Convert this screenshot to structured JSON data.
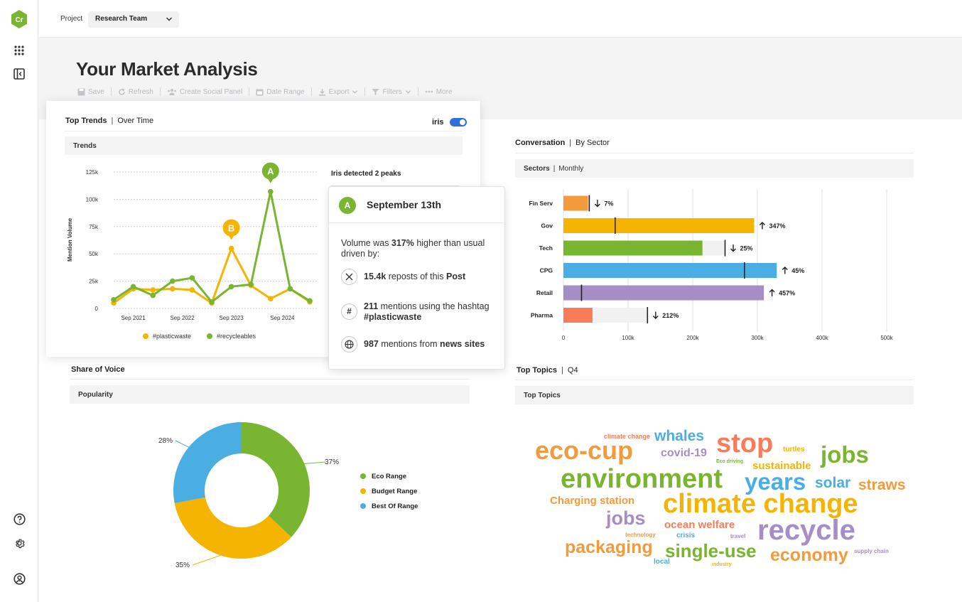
{
  "brand": {
    "logo_text": "Cr",
    "color": "#7ab532"
  },
  "topbar": {
    "project_label": "Project",
    "project_value": "Research Team"
  },
  "page": {
    "title": "Your Market Analysis"
  },
  "toolbar": {
    "save": "Save",
    "refresh": "Refresh",
    "create_panel": "Create Social Panel",
    "date_range": "Date Range",
    "export": "Export",
    "filters": "Filters",
    "more": "More"
  },
  "trends": {
    "title": "Top Trends",
    "subtitle": "Over Time",
    "iris_label": "iris",
    "iris_enabled": true,
    "subbar": "Trends",
    "peaks_note": "Iris detected 2 peaks",
    "peak_a": "A",
    "peak_b": "B"
  },
  "popover": {
    "badge": "A",
    "date": "September 13th",
    "volume_pre": "Volume was ",
    "volume_pct": "317%",
    "volume_post": " higher than usual driven by:",
    "row1_num": "15.4k",
    "row1_text": " reposts of this ",
    "row1_bold": "Post",
    "row2_num": "211",
    "row2_text": " mentions using the hashtag ",
    "row2_bold": "#plasticwaste",
    "row3_num": "987",
    "row3_text": " mentions from ",
    "row3_bold": "news sites",
    "icons": [
      "x-logo-icon",
      "hashtag-icon",
      "globe-icon"
    ]
  },
  "conversation": {
    "title": "Conversation",
    "subtitle": "By Sector",
    "subbar_bold": "Sectors",
    "subbar_thin": "Monthly"
  },
  "share": {
    "title": "Share of Voice",
    "subbar": "Popularity"
  },
  "topics": {
    "title": "Top Topics",
    "subtitle": "Q4",
    "subbar": "Top Topics"
  },
  "chart_data": [
    {
      "type": "line",
      "title": "",
      "ylabel": "Mention Volume",
      "xlabel": "",
      "ylim": [
        0,
        125000
      ],
      "yticks": [
        0,
        25000,
        50000,
        75000,
        100000,
        125000
      ],
      "ytick_labels": [
        "0",
        "25k",
        "50k",
        "75k",
        "100k",
        "125k"
      ],
      "xtick_labels": [
        "Sep 2021",
        "Sep 2022",
        "Sep 2023",
        "Sep 2024"
      ],
      "grid": true,
      "legend": "bottom",
      "series": [
        {
          "name": "#plasticwaste",
          "color": "#f5b400",
          "values": [
            5000,
            18000,
            17000,
            18000,
            17000,
            5000,
            55000,
            21000,
            9000,
            18000,
            6000
          ]
        },
        {
          "name": "#recycleables",
          "color": "#7ab532",
          "values": [
            8000,
            20000,
            12000,
            25000,
            28000,
            6000,
            20000,
            22000,
            107000,
            18000,
            7000
          ]
        }
      ],
      "peaks": [
        {
          "label": "A",
          "series": 1,
          "index": 8
        },
        {
          "label": "B",
          "series": 0,
          "index": 6
        }
      ]
    },
    {
      "type": "bar",
      "orientation": "horizontal",
      "title": "",
      "categories": [
        "Fin Serv",
        "Gov",
        "Tech",
        "CPG",
        "Retail",
        "Pharma"
      ],
      "values": [
        38000,
        295000,
        215000,
        330000,
        310000,
        45000
      ],
      "targets": [
        40000,
        80000,
        250000,
        280000,
        28000,
        130000
      ],
      "changes": [
        "7%",
        "347%",
        "25%",
        "45%",
        "457%",
        "212%"
      ],
      "change_dir": [
        "down",
        "up",
        "down",
        "up",
        "up",
        "down"
      ],
      "colors": [
        "#f39a3c",
        "#f5b400",
        "#7ab532",
        "#4aaee3",
        "#a58dc6",
        "#f97c5a"
      ],
      "xlim": [
        0,
        500000
      ],
      "xticks": [
        0,
        100000,
        200000,
        300000,
        400000,
        500000
      ],
      "xtick_labels": [
        "0",
        "100k",
        "200k",
        "300k",
        "400k",
        "500k"
      ],
      "grid": true
    },
    {
      "type": "pie",
      "donut": true,
      "labels": [
        "Eco Range",
        "Budget Range",
        "Best Of Range"
      ],
      "values": [
        37,
        35,
        28
      ],
      "value_labels": [
        "37%",
        "35%",
        "28%"
      ],
      "colors": [
        "#7ab532",
        "#f5b400",
        "#4aaee3"
      ],
      "legend": "right"
    }
  ],
  "wordcloud": [
    {
      "text": "climate change",
      "color": "#f97c5a"
    },
    {
      "text": "whales",
      "color": "#4aaee3"
    },
    {
      "text": "stop",
      "color": "#f97c5a"
    },
    {
      "text": "turtles",
      "color": "#f5b400"
    },
    {
      "text": "eco-cup",
      "color": "#f39a3c"
    },
    {
      "text": "covid-19",
      "color": "#a58dc6"
    },
    {
      "text": "Eco driving",
      "color": "#7ab532"
    },
    {
      "text": "jobs",
      "color": "#7ab532"
    },
    {
      "text": "sustainable",
      "color": "#f5b400"
    },
    {
      "text": "environment",
      "color": "#7ab532"
    },
    {
      "text": "years",
      "color": "#4aaee3"
    },
    {
      "text": "solar",
      "color": "#4aaee3"
    },
    {
      "text": "straws",
      "color": "#f39a3c"
    },
    {
      "text": "Charging station",
      "color": "#f39a3c"
    },
    {
      "text": "climate change",
      "color": "#f5b400"
    },
    {
      "text": "jobs",
      "color": "#a58dc6"
    },
    {
      "text": "ocean welfare",
      "color": "#f97c5a"
    },
    {
      "text": "recycle",
      "color": "#a58dc6"
    },
    {
      "text": "technology",
      "color": "#f39a3c"
    },
    {
      "text": "crisis",
      "color": "#4aaee3"
    },
    {
      "text": "travel",
      "color": "#a58dc6"
    },
    {
      "text": "packaging",
      "color": "#f39a3c"
    },
    {
      "text": "single-use",
      "color": "#7ab532"
    },
    {
      "text": "economy",
      "color": "#f39a3c"
    },
    {
      "text": "supply chain",
      "color": "#a58dc6"
    },
    {
      "text": "local",
      "color": "#4aaee3"
    },
    {
      "text": "industry",
      "color": "#f5b400"
    }
  ]
}
